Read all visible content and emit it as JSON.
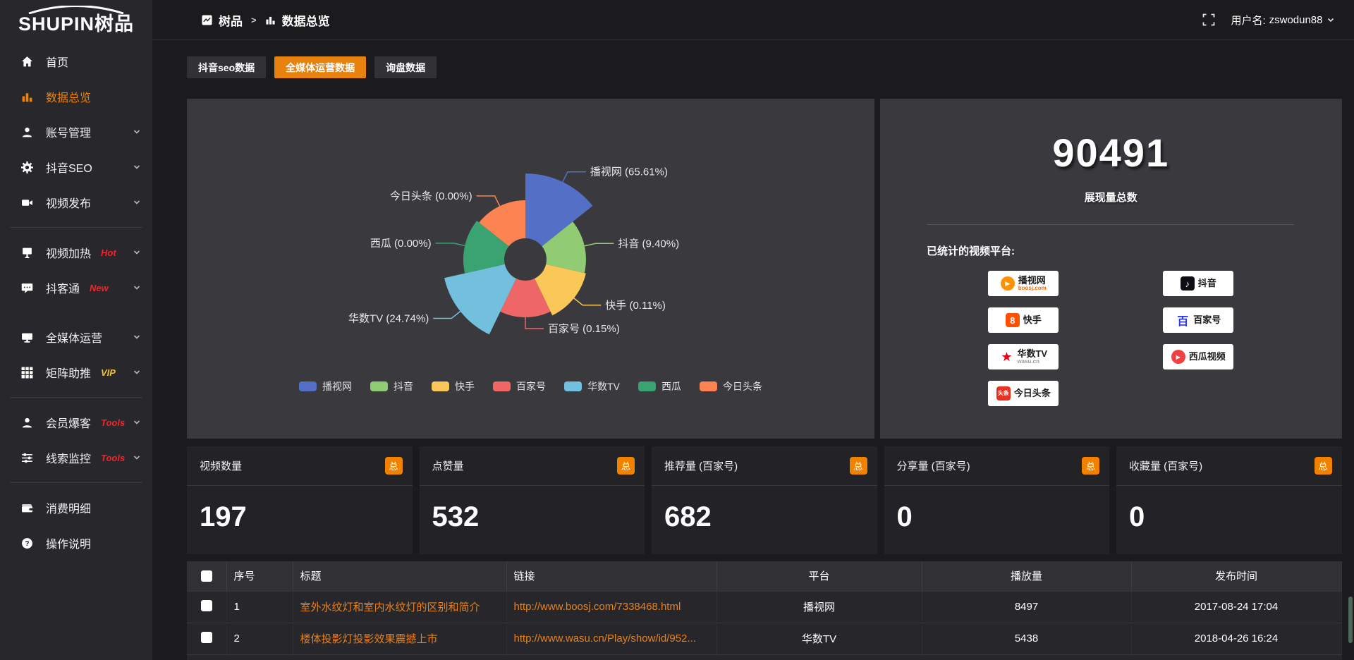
{
  "brand": {
    "name_en": "SHUPIN",
    "name_cn": "树品"
  },
  "topbar": {
    "breadcrumb": {
      "root": "树品",
      "sep": ">",
      "current": "数据总览"
    },
    "user": {
      "label": "用户名:",
      "name": "zswodun88"
    }
  },
  "sidebar": {
    "items": [
      {
        "label": "首页",
        "icon": "home"
      },
      {
        "label": "数据总览",
        "icon": "bar-chart",
        "active": true
      },
      {
        "label": "账号管理",
        "icon": "user",
        "expandable": true
      },
      {
        "label": "抖音SEO",
        "icon": "gear",
        "expandable": true
      },
      {
        "label": "视频发布",
        "icon": "video",
        "expandable": true,
        "divider_after": true
      },
      {
        "label": "视频加热",
        "icon": "screen",
        "tag": "Hot",
        "tag_color": "#f5222d",
        "expandable": true
      },
      {
        "label": "抖客通",
        "icon": "chat",
        "tag": "New",
        "tag_color": "#f5222d",
        "expandable": true,
        "gap_after": true
      },
      {
        "label": "全媒体运营",
        "icon": "monitor",
        "expandable": true
      },
      {
        "label": "矩阵助推",
        "icon": "grid",
        "tag": "VIP",
        "tag_color": "#f0c13d",
        "expandable": true,
        "divider_after": true
      },
      {
        "label": "会员爆客",
        "icon": "person",
        "tag": "Tools",
        "tag_color": "#f5222d",
        "expandable": true
      },
      {
        "label": "线索监控",
        "icon": "sliders",
        "tag": "Tools",
        "tag_color": "#f5222d",
        "expandable": true,
        "divider_after": true
      },
      {
        "label": "消费明细",
        "icon": "wallet"
      },
      {
        "label": "操作说明",
        "icon": "question"
      }
    ]
  },
  "tabs": {
    "items": [
      {
        "label": "抖音seo数据"
      },
      {
        "label": "全媒体运营数据",
        "active": true
      },
      {
        "label": "询盘数据"
      }
    ]
  },
  "chart_data": {
    "type": "pie",
    "subtype": "nightingale-rose",
    "unit": "percent",
    "inner_radius": 30,
    "legend_position": "bottom",
    "slices": [
      {
        "name": "播视网",
        "percent": 65.61,
        "label": "播视网 (65.61%)",
        "color": "#5470c6",
        "display_radius": 122
      },
      {
        "name": "抖音",
        "percent": 9.4,
        "label": "抖音 (9.40%)",
        "color": "#91cc75",
        "display_radius": 86
      },
      {
        "name": "快手",
        "percent": 0.11,
        "label": "快手 (0.11%)",
        "color": "#fac858",
        "display_radius": 88
      },
      {
        "name": "百家号",
        "percent": 0.15,
        "label": "百家号 (0.15%)",
        "color": "#ee6666",
        "display_radius": 82
      },
      {
        "name": "华数TV",
        "percent": 24.74,
        "label": "华数TV (24.74%)",
        "color": "#73c0de",
        "display_radius": 118
      },
      {
        "name": "西瓜",
        "percent": 0.0,
        "label": "西瓜 (0.00%)",
        "color": "#3ba272",
        "display_radius": 88
      },
      {
        "name": "今日头条",
        "percent": 0.0,
        "label": "今日头条 (0.00%)",
        "color": "#fc8452",
        "display_radius": 84
      }
    ]
  },
  "summary": {
    "total": "90491",
    "total_label": "展现量总数",
    "platforms_heading": "已统计的视频平台:",
    "platforms": [
      {
        "name": "播视网",
        "sub": "boosj.com",
        "icon": "boosj",
        "column": 1
      },
      {
        "name": "抖音",
        "icon": "douyin",
        "column": 2
      },
      {
        "name": "快手",
        "icon": "kuaishou",
        "column": 1
      },
      {
        "name": "百家号",
        "icon": "baijiahao",
        "column": 2
      },
      {
        "name": "华数TV",
        "sub": "wasu.cn",
        "sub_gray": true,
        "icon": "wasu",
        "column": 1
      },
      {
        "name": "西瓜视频",
        "icon": "xigua",
        "column": 2
      },
      {
        "name": "今日头条",
        "icon": "toutiao",
        "column": 1
      }
    ]
  },
  "stat_cards": [
    {
      "label": "视频数量",
      "badge": "总",
      "value": "197"
    },
    {
      "label": "点赞量",
      "badge": "总",
      "value": "532"
    },
    {
      "label": "推荐量 (百家号)",
      "badge": "总",
      "value": "682"
    },
    {
      "label": "分享量 (百家号)",
      "badge": "总",
      "value": "0"
    },
    {
      "label": "收藏量 (百家号)",
      "badge": "总",
      "value": "0"
    }
  ],
  "table": {
    "headers": [
      "序号",
      "标题",
      "链接",
      "平台",
      "播放量",
      "发布时间"
    ],
    "rows": [
      [
        "1",
        "室外水纹灯和室内水纹灯的区别和简介",
        "http://www.boosj.com/7338468.html",
        "播视网",
        "8497",
        "2017-08-24 17:04"
      ],
      [
        "2",
        "楼体投影灯投影效果震撼上市",
        "http://www.wasu.cn/Play/show/id/952...",
        "华数TV",
        "5438",
        "2018-04-26 16:24"
      ]
    ]
  }
}
